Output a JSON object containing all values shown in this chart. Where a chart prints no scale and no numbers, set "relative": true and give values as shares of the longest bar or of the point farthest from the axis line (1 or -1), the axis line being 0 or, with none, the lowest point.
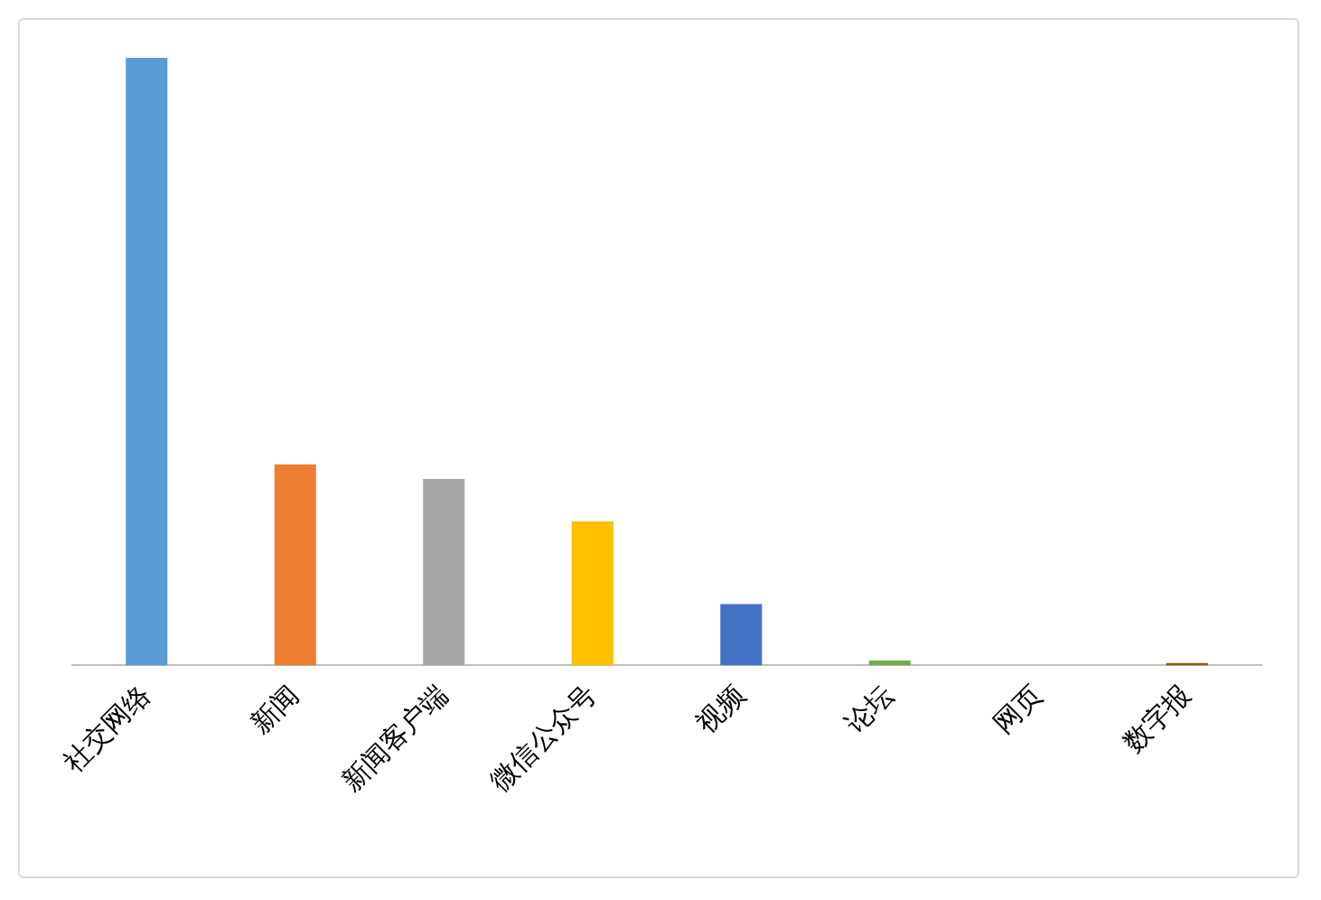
{
  "chart_data": {
    "type": "bar",
    "relative": true,
    "categories": [
      "社交网络",
      "新闻",
      "新闻客户端",
      "微信公众号",
      "视频",
      "论坛",
      "网页",
      "数字报"
    ],
    "values": [
      1,
      0.331,
      0.307,
      0.237,
      0.101,
      0.008,
      0,
      0.004
    ],
    "colors": [
      "#5b9bd5",
      "#ed7d31",
      "#a5a5a5",
      "#ffc000",
      "#4472c4",
      "#70ad47",
      "#264478",
      "#7f6000"
    ],
    "grid": false,
    "legend": false
  }
}
